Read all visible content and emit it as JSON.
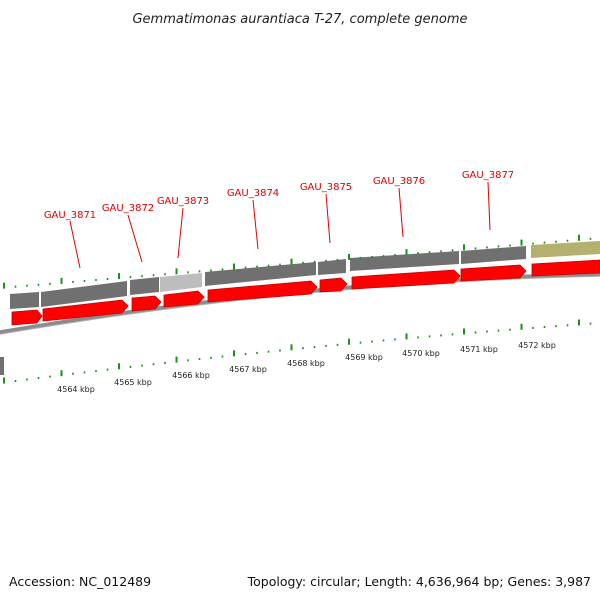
{
  "title": "Gemmatimonas aurantiaca T-27, complete genome",
  "footer": {
    "accession": "Accession: NC_012489",
    "summary": "Topology: circular; Length: 4,636,964 bp; Genes: 3,987"
  },
  "colors": {
    "gene_red": "#ff0000",
    "gene_dark_red": "#c80000",
    "feature_gray": "#707070",
    "feature_light_gray": "#bdbdbd",
    "feature_olive": "#b5b06e",
    "tick_green": "#1a8f1a",
    "backbone_gray": "#8c8c8c",
    "label_red": "#e00000"
  },
  "genes": [
    {
      "name": "GAU_3871"
    },
    {
      "name": "GAU_3872"
    },
    {
      "name": "GAU_3873"
    },
    {
      "name": "GAU_3874"
    },
    {
      "name": "GAU_3875"
    },
    {
      "name": "GAU_3876"
    },
    {
      "name": "GAU_3877"
    }
  ],
  "kbp_ticks": [
    {
      "label": "4564 kbp"
    },
    {
      "label": "4565 kbp"
    },
    {
      "label": "4566 kbp"
    },
    {
      "label": "4567 kbp"
    },
    {
      "label": "4568 kbp"
    },
    {
      "label": "4569 kbp"
    },
    {
      "label": "4570 kbp"
    },
    {
      "label": "4571 kbp"
    },
    {
      "label": "4572 kbp"
    }
  ]
}
